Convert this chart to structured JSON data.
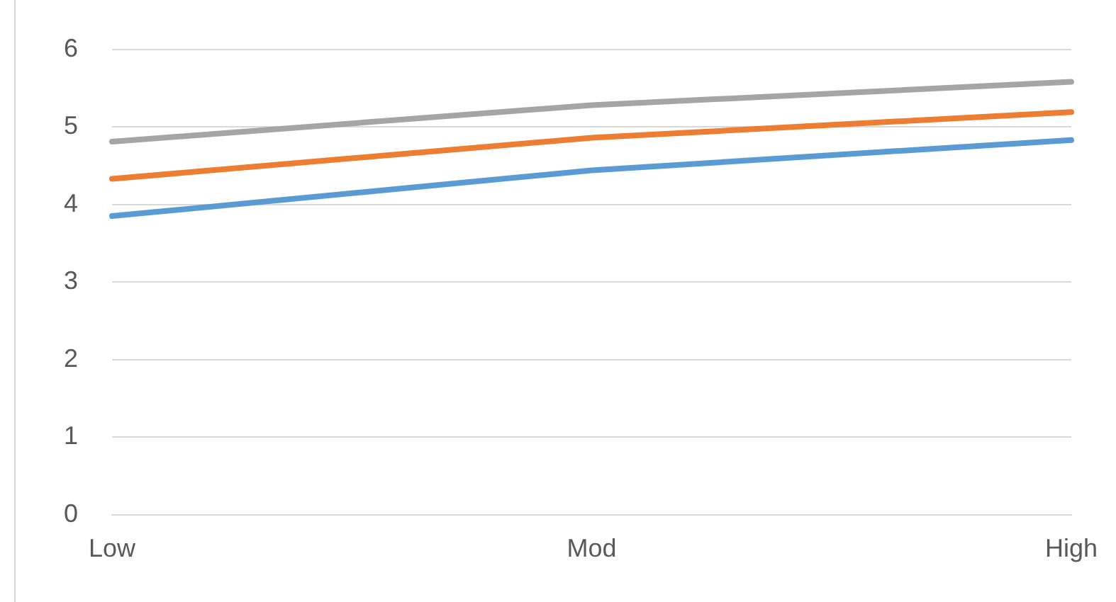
{
  "chart_data": {
    "type": "line",
    "categories": [
      "Low",
      "Mod",
      "High"
    ],
    "series": [
      {
        "color": "#5b9bd5",
        "values": [
          3.85,
          4.44,
          4.83
        ]
      },
      {
        "color": "#ed7d31",
        "values": [
          4.33,
          4.86,
          5.19
        ]
      },
      {
        "color": "#a5a5a5",
        "values": [
          4.81,
          5.28,
          5.58
        ]
      }
    ],
    "ylim": [
      0,
      6
    ],
    "yticks": [
      0,
      1,
      2,
      3,
      4,
      5,
      6
    ],
    "grid": "y",
    "legend": false,
    "marker": "none",
    "line_style": "solid"
  }
}
